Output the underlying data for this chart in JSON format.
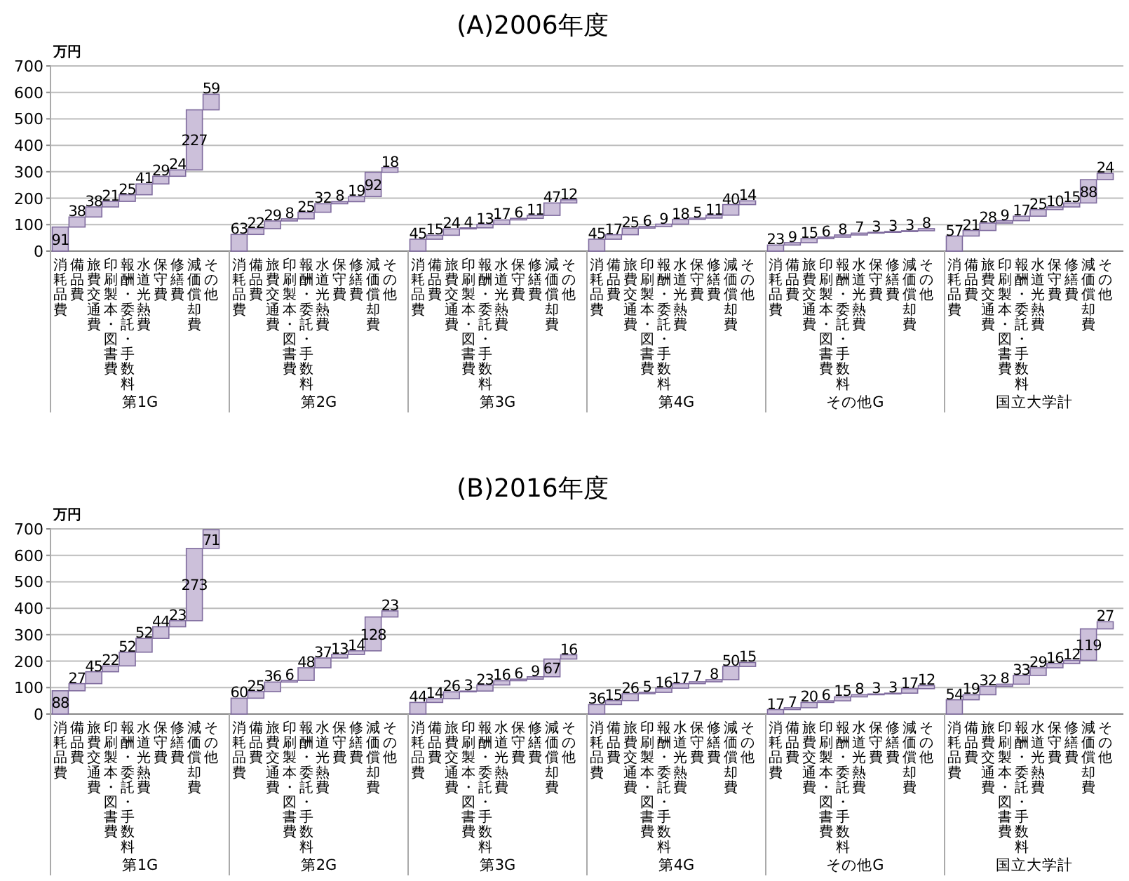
{
  "chart_data": [
    {
      "type": "bar",
      "ylabel": "万円",
      "xlabel": "第1G",
      "categories": [
        "消耗品費",
        "備品費",
        "旅費交通費",
        "印刷製本・図書費",
        "報酬・委託・手数料",
        "水道光熱費",
        "保守費",
        "修繕費",
        "減価償却費",
        "その他"
      ],
      "values": [
        91,
        38,
        38,
        21,
        25,
        41,
        29,
        24,
        227,
        59
      ],
      "base": [
        0,
        91,
        129,
        167,
        188,
        213,
        254,
        283,
        307,
        534
      ],
      "color": "#ccc0da",
      "ylim": [
        0,
        700
      ],
      "yticks": [
        0,
        100,
        200,
        300,
        400,
        500,
        600,
        700
      ],
      "grid": "y",
      "data_labels": true
    },
    {
      "type": "bar",
      "xlabel": "第2G",
      "categories": [
        "消耗品費",
        "備品費",
        "旅費交通費",
        "印刷製本・図書費",
        "報酬・委託・手数料",
        "水道光熱費",
        "保守費",
        "修繕費",
        "減価償却費",
        "その他"
      ],
      "values": [
        63,
        22,
        29,
        8,
        25,
        32,
        8,
        19,
        92,
        18
      ],
      "base": [
        0,
        63,
        85,
        114,
        122,
        147,
        179,
        187,
        206,
        298
      ],
      "color": "#ccc0da",
      "ylim": [
        0,
        700
      ],
      "yticks": [
        0,
        100,
        200,
        300,
        400,
        500,
        600,
        700
      ],
      "grid": "y",
      "data_labels": true,
      "tick_labels": "x"
    },
    {
      "type": "bar",
      "title": "(A)2006年度",
      "xlabel": "第3G",
      "categories": [
        "消耗品費",
        "備品費",
        "旅費交通費",
        "印刷製本・図書費",
        "報酬・委託・手数料",
        "水道光熱費",
        "保守費",
        "修繕費",
        "減価償却費",
        "その他"
      ],
      "values": [
        45,
        15,
        24,
        4,
        13,
        17,
        6,
        11,
        47,
        12
      ],
      "base": [
        0,
        45,
        60,
        84,
        88,
        101,
        118,
        124,
        135,
        182
      ],
      "color": "#ccc0da",
      "ylim": [
        0,
        700
      ],
      "yticks": [
        0,
        100,
        200,
        300,
        400,
        500,
        600,
        700
      ],
      "grid": "y",
      "data_labels": true,
      "tick_labels": "x"
    },
    {
      "type": "bar",
      "xlabel": "第4G",
      "categories": [
        "消耗品費",
        "備品費",
        "旅費交通費",
        "印刷製本・図書費",
        "報酬・委託・手数料",
        "水道光熱費",
        "保守費",
        "修繕費",
        "減価償却費",
        "その他"
      ],
      "values": [
        45,
        17,
        25,
        6,
        9,
        18,
        5,
        11,
        40,
        14
      ],
      "base": [
        0,
        45,
        62,
        87,
        93,
        102,
        120,
        125,
        136,
        176
      ],
      "color": "#ccc0da",
      "ylim": [
        0,
        700
      ],
      "yticks": [
        0,
        100,
        200,
        300,
        400,
        500,
        600,
        700
      ],
      "grid": "y",
      "data_labels": true,
      "tick_labels": "x"
    },
    {
      "type": "bar",
      "xlabel": "その他G",
      "categories": [
        "消耗品費",
        "備品費",
        "旅費交通費",
        "印刷製本・図書費",
        "報酬・委託・手数料",
        "水道光熱費",
        "保守費",
        "修繕費",
        "減価償却費",
        "その他"
      ],
      "values": [
        23,
        9,
        15,
        6,
        8,
        7,
        3,
        3,
        3,
        8
      ],
      "base": [
        0,
        23,
        32,
        47,
        53,
        61,
        68,
        71,
        74,
        77
      ],
      "color": "#ccc0da",
      "ylim": [
        0,
        700
      ],
      "yticks": [
        0,
        100,
        200,
        300,
        400,
        500,
        600,
        700
      ],
      "grid": "y",
      "data_labels": true,
      "tick_labels": "x"
    },
    {
      "type": "bar",
      "xlabel": "国立大学計",
      "categories": [
        "消耗品費",
        "備品費",
        "旅費交通費",
        "印刷製本・図書費",
        "報酬・委託・手数料",
        "水道光熱費",
        "保守費",
        "修繕費",
        "減価償却費",
        "その他"
      ],
      "values": [
        57,
        21,
        28,
        9,
        17,
        25,
        10,
        15,
        88,
        24
      ],
      "base": [
        0,
        57,
        78,
        106,
        115,
        132,
        157,
        167,
        182,
        270
      ],
      "color": "#ccc0da",
      "ylim": [
        0,
        700
      ],
      "yticks": [
        0,
        100,
        200,
        300,
        400,
        500,
        600,
        700
      ],
      "grid": "y",
      "data_labels": true,
      "tick_labels": "x"
    },
    {
      "type": "bar",
      "ylabel": "万円",
      "xlabel": "第1G",
      "categories": [
        "消耗品費",
        "備品費",
        "旅費交通費",
        "印刷製本・図書費",
        "報酬・委託・手数料",
        "水道光熱費",
        "保守費",
        "修繕費",
        "減価償却費",
        "その他"
      ],
      "values": [
        88,
        27,
        45,
        22,
        52,
        52,
        44,
        23,
        273,
        71
      ],
      "base": [
        0,
        88,
        115,
        160,
        182,
        234,
        286,
        330,
        353,
        626
      ],
      "color": "#ccc0da",
      "ylim": [
        0,
        700
      ],
      "yticks": [
        0,
        100,
        200,
        300,
        400,
        500,
        600,
        700
      ],
      "grid": "y",
      "data_labels": true
    },
    {
      "type": "bar",
      "xlabel": "第2G",
      "categories": [
        "消耗品費",
        "備品費",
        "旅費交通費",
        "印刷製本・図書費",
        "報酬・委託・手数料",
        "水道光熱費",
        "保守費",
        "修繕費",
        "減価償却費",
        "その他"
      ],
      "values": [
        60,
        25,
        36,
        6,
        48,
        37,
        13,
        14,
        128,
        23
      ],
      "base": [
        0,
        60,
        85,
        121,
        127,
        175,
        212,
        225,
        239,
        367
      ],
      "color": "#ccc0da",
      "ylim": [
        0,
        700
      ],
      "yticks": [
        0,
        100,
        200,
        300,
        400,
        500,
        600,
        700
      ],
      "grid": "y",
      "data_labels": true,
      "tick_labels": "x"
    },
    {
      "type": "bar",
      "title": "(B)2016年度",
      "xlabel": "第3G",
      "categories": [
        "消耗品費",
        "備品費",
        "旅費交通費",
        "印刷製本・図書費",
        "報酬・委託・手数料",
        "水道光熱費",
        "保守費",
        "修繕費",
        "減価償却費",
        "その他"
      ],
      "values": [
        44,
        14,
        26,
        3,
        23,
        16,
        6,
        9,
        67,
        16
      ],
      "base": [
        0,
        44,
        58,
        84,
        87,
        110,
        126,
        132,
        141,
        208
      ],
      "color": "#ccc0da",
      "ylim": [
        0,
        700
      ],
      "yticks": [
        0,
        100,
        200,
        300,
        400,
        500,
        600,
        700
      ],
      "grid": "y",
      "data_labels": true,
      "tick_labels": "x"
    },
    {
      "type": "bar",
      "xlabel": "第4G",
      "categories": [
        "消耗品費",
        "備品費",
        "旅費交通費",
        "印刷製本・図書費",
        "報酬・委託・手数料",
        "水道光熱費",
        "保守費",
        "修繕費",
        "減価償却費",
        "その他"
      ],
      "values": [
        36,
        15,
        26,
        5,
        16,
        17,
        7,
        8,
        50,
        15
      ],
      "base": [
        0,
        36,
        51,
        77,
        82,
        98,
        115,
        122,
        130,
        180
      ],
      "color": "#ccc0da",
      "ylim": [
        0,
        700
      ],
      "yticks": [
        0,
        100,
        200,
        300,
        400,
        500,
        600,
        700
      ],
      "grid": "y",
      "data_labels": true,
      "tick_labels": "x"
    },
    {
      "type": "bar",
      "xlabel": "その他G",
      "categories": [
        "消耗品費",
        "備品費",
        "旅費交通費",
        "印刷製本・図書費",
        "報酬・委託・手数料",
        "水道光熱費",
        "保守費",
        "修繕費",
        "減価償却費",
        "その他"
      ],
      "values": [
        17,
        7,
        20,
        6,
        15,
        8,
        3,
        3,
        17,
        12
      ],
      "base": [
        0,
        17,
        24,
        44,
        50,
        65,
        73,
        76,
        79,
        96
      ],
      "color": "#ccc0da",
      "ylim": [
        0,
        700
      ],
      "yticks": [
        0,
        100,
        200,
        300,
        400,
        500,
        600,
        700
      ],
      "grid": "y",
      "data_labels": true,
      "tick_labels": "x"
    },
    {
      "type": "bar",
      "xlabel": "国立大学計",
      "categories": [
        "消耗品費",
        "備品費",
        "旅費交通費",
        "印刷製本・図書費",
        "報酬・委託・手数料",
        "水道光熱費",
        "保守費",
        "修繕費",
        "減価償却費",
        "その他"
      ],
      "values": [
        54,
        19,
        32,
        8,
        33,
        29,
        16,
        12,
        119,
        27
      ],
      "base": [
        0,
        54,
        73,
        105,
        113,
        146,
        175,
        191,
        203,
        322
      ],
      "color": "#ccc0da",
      "ylim": [
        0,
        700
      ],
      "yticks": [
        0,
        100,
        200,
        300,
        400,
        500,
        600,
        700
      ],
      "grid": "y",
      "data_labels": true,
      "tick_labels": "x"
    }
  ]
}
